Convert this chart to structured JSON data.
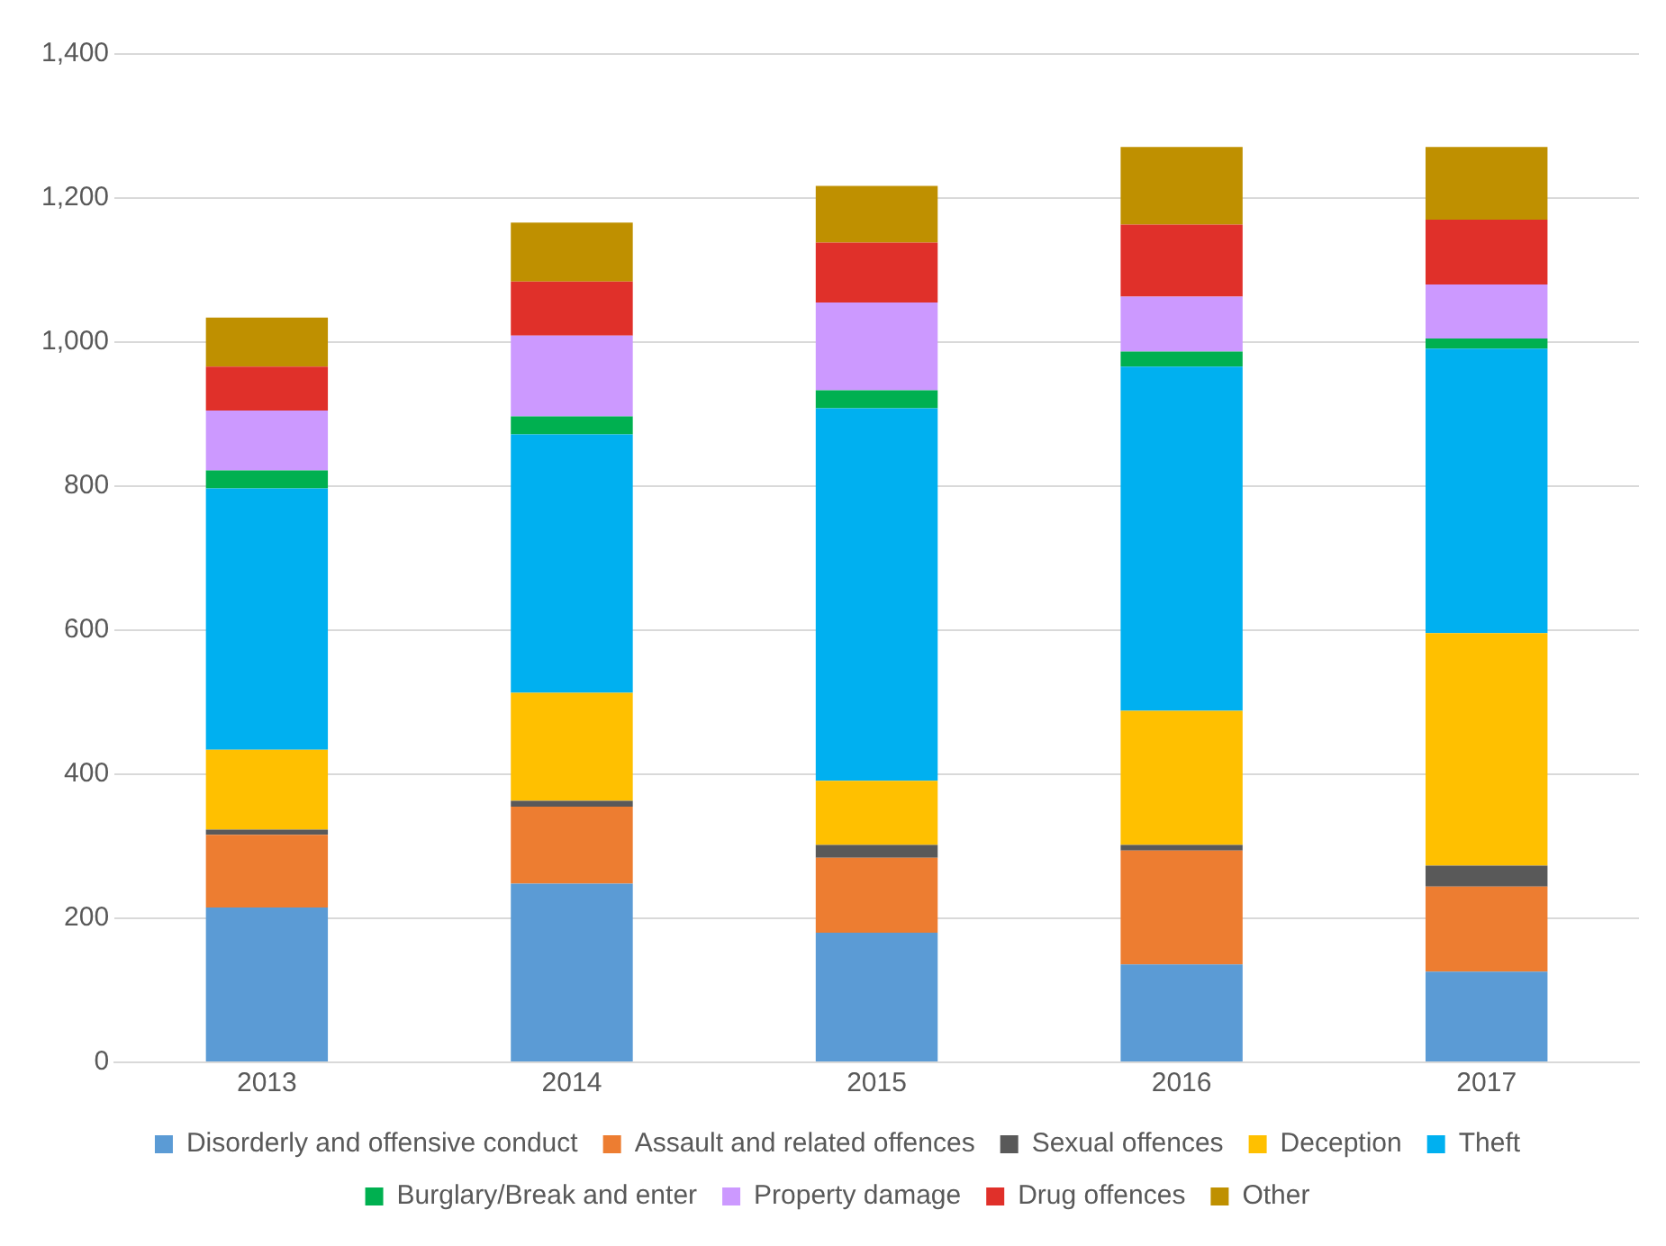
{
  "chart_data": {
    "type": "bar",
    "stacked": true,
    "categories": [
      "2013",
      "2014",
      "2015",
      "2016",
      "2017"
    ],
    "series": [
      {
        "name": "Disorderly and offensive conduct",
        "color": "#5b9bd5",
        "values": [
          215,
          248,
          180,
          136,
          126
        ]
      },
      {
        "name": "Assault and related offences",
        "color": "#ed7d31",
        "values": [
          101,
          107,
          104,
          158,
          118
        ]
      },
      {
        "name": "Sexual offences",
        "color": "#595959",
        "values": [
          7,
          8,
          18,
          8,
          29
        ]
      },
      {
        "name": "Deception",
        "color": "#ffc000",
        "values": [
          111,
          150,
          89,
          186,
          323
        ]
      },
      {
        "name": "Theft",
        "color": "#00b0f0",
        "values": [
          363,
          359,
          517,
          478,
          395
        ]
      },
      {
        "name": "Burglary/Break and enter",
        "color": "#00b050",
        "values": [
          25,
          25,
          25,
          21,
          14
        ]
      },
      {
        "name": "Property damage",
        "color": "#cc99ff",
        "values": [
          83,
          112,
          122,
          76,
          75
        ]
      },
      {
        "name": "Drug offences",
        "color": "#e0302a",
        "values": [
          61,
          75,
          83,
          100,
          90
        ]
      },
      {
        "name": "Other",
        "color": "#bf9000",
        "values": [
          68,
          82,
          79,
          108,
          101
        ]
      }
    ],
    "ylim": [
      0,
      1400
    ],
    "yticks": [
      {
        "value": 0,
        "label": "0"
      },
      {
        "value": 200,
        "label": "200"
      },
      {
        "value": 400,
        "label": "400"
      },
      {
        "value": 600,
        "label": "600"
      },
      {
        "value": 800,
        "label": "800"
      },
      {
        "value": 1000,
        "label": "1,000"
      },
      {
        "value": 1200,
        "label": "1,200"
      },
      {
        "value": 1400,
        "label": "1,400"
      }
    ],
    "grid": "y",
    "legend": "bottom"
  }
}
